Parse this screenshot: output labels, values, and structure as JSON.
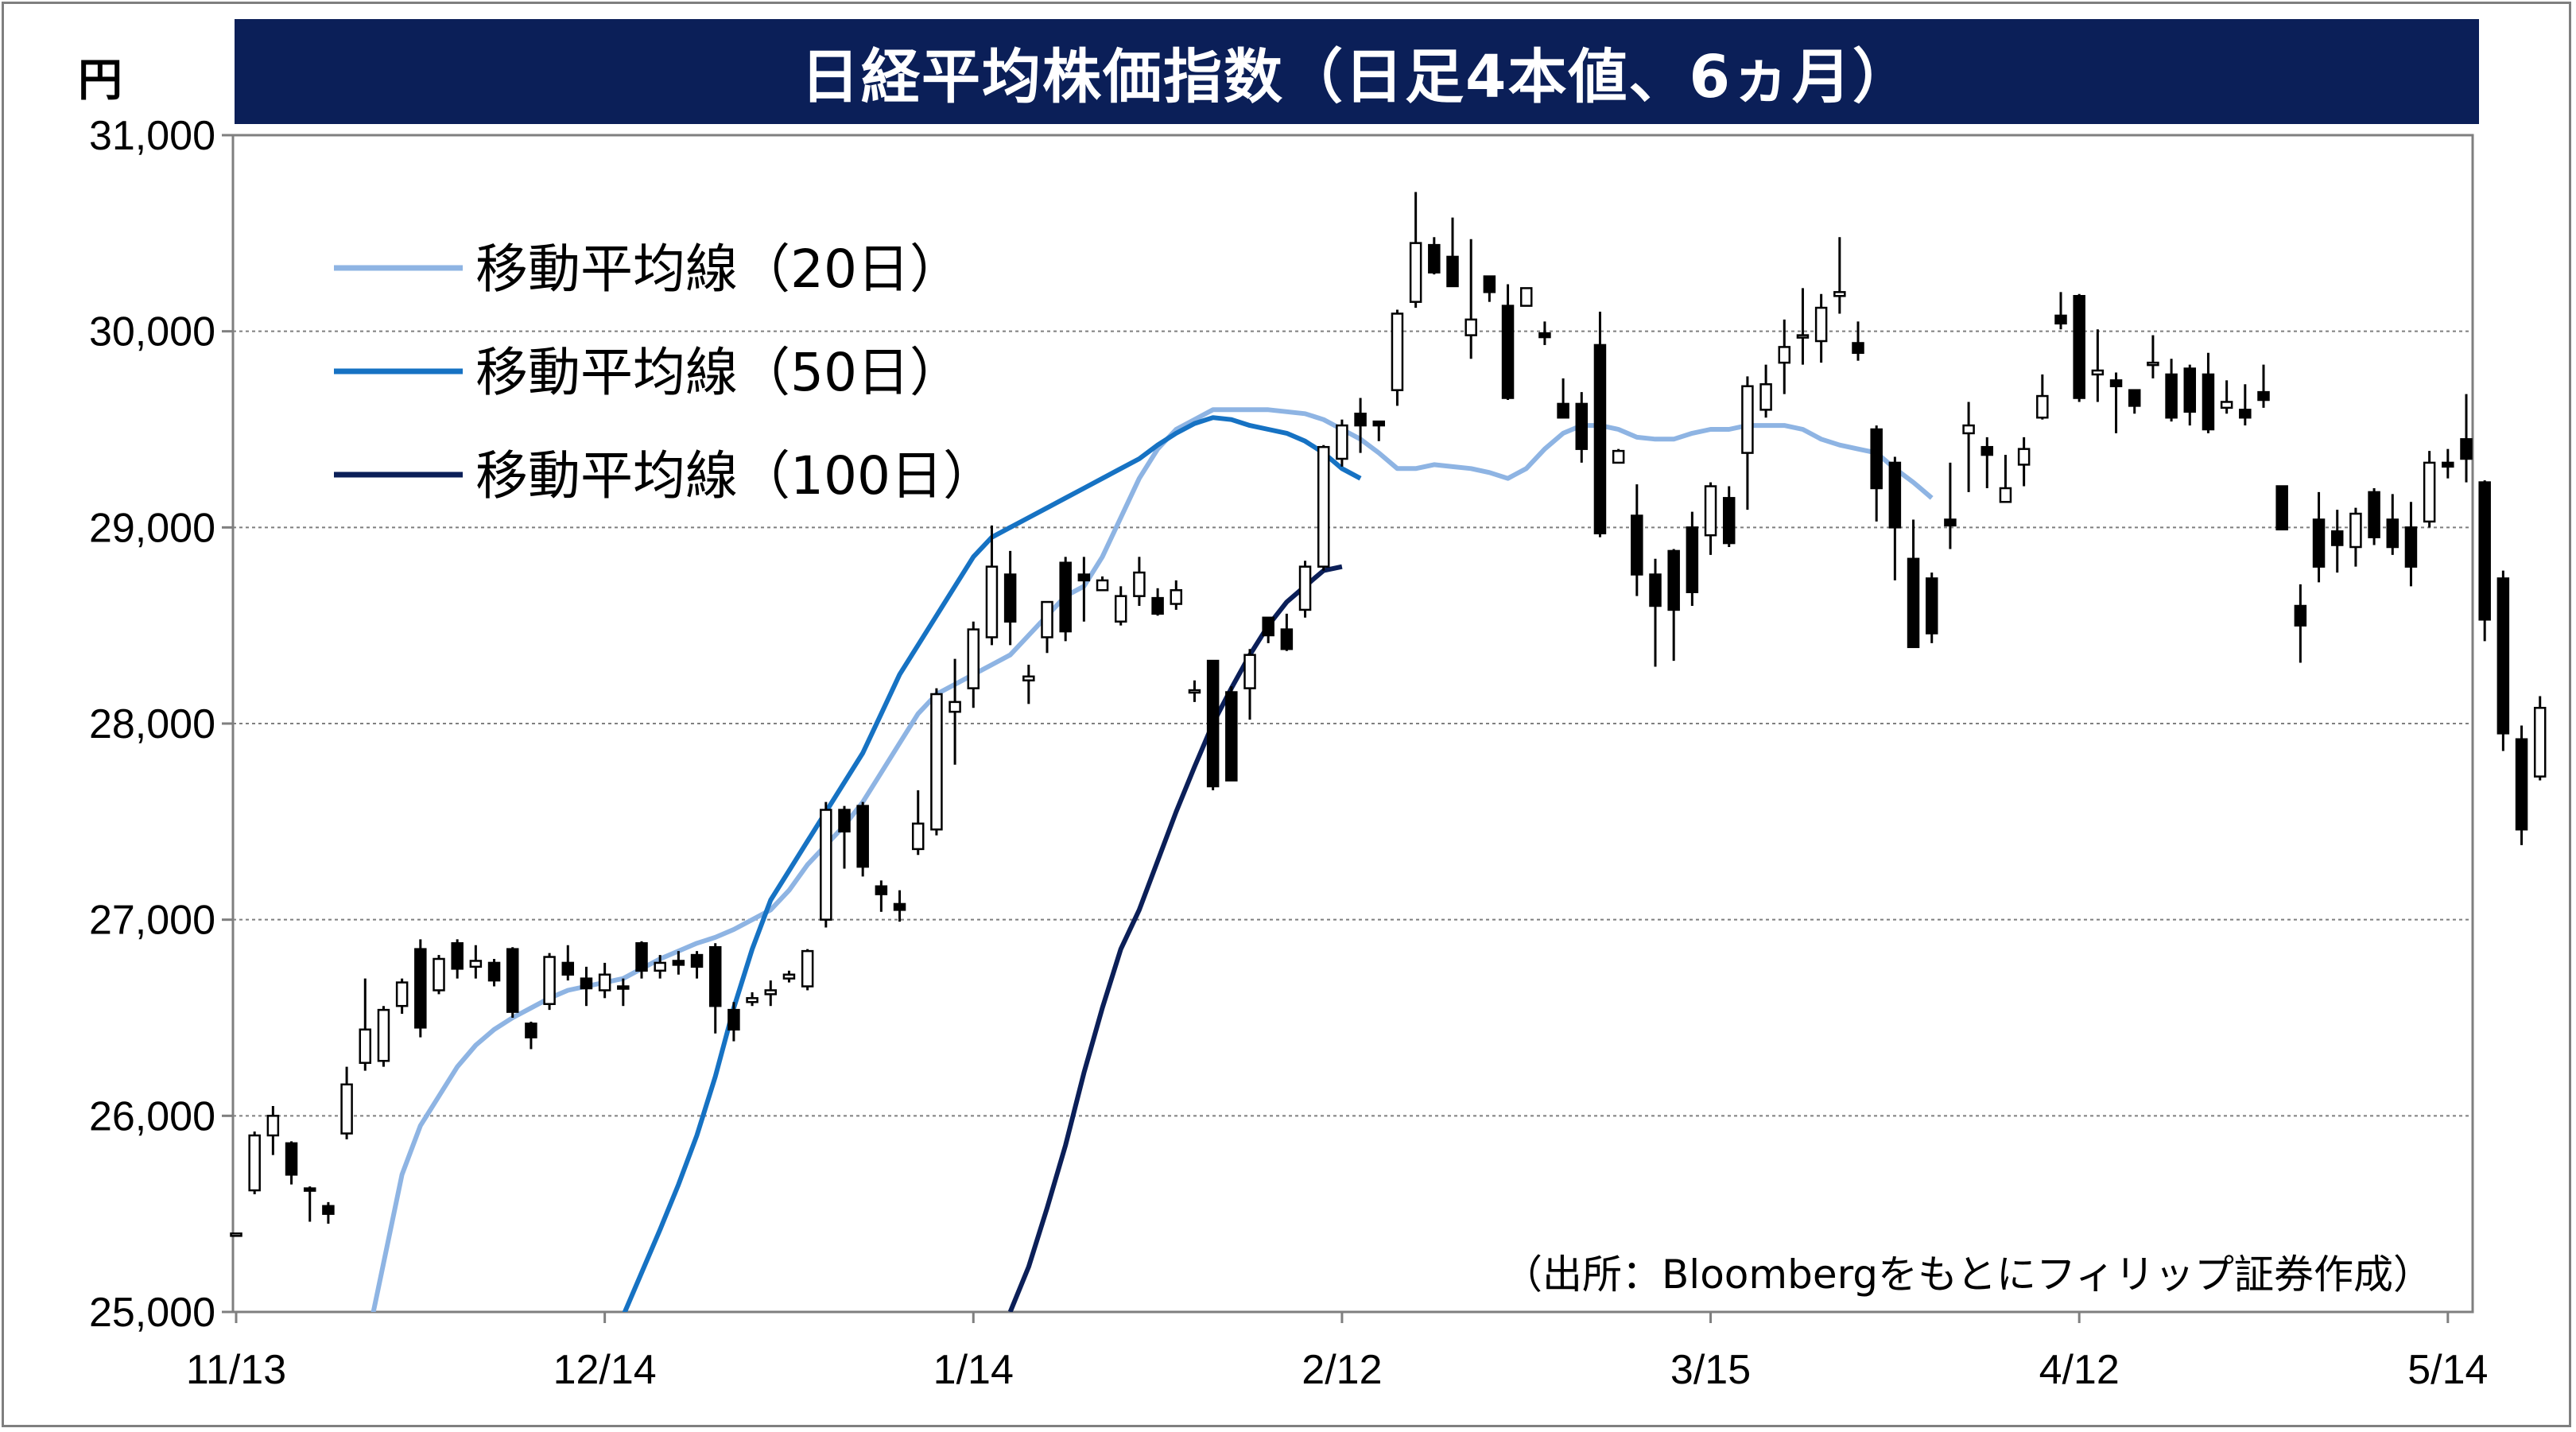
{
  "header": {
    "title": "日経平均株価指数（日足4本値、6ヵ月）",
    "unit": "円"
  },
  "source": "（出所：Bloombergをもとにフィリップ証券作成）",
  "chart_data": {
    "type": "candlestick",
    "title": "日経平均株価指数（日足4本値、6ヵ月）",
    "ylabel": "円",
    "ylim": [
      25000,
      31000
    ],
    "y_ticks": [
      25000,
      26000,
      27000,
      28000,
      29000,
      30000,
      31000
    ],
    "y_tick_labels": [
      "25,000",
      "26,000",
      "27,000",
      "28,000",
      "29,000",
      "30,000",
      "31,000"
    ],
    "x_ticks": [
      {
        "label": "11/13",
        "index": 0
      },
      {
        "label": "12/14",
        "index": 20
      },
      {
        "label": "1/14",
        "index": 40
      },
      {
        "label": "2/12",
        "index": 60
      },
      {
        "label": "3/15",
        "index": 80
      },
      {
        "label": "4/12",
        "index": 100
      },
      {
        "label": "5/14",
        "index": 120
      }
    ],
    "grid": true,
    "legend_position": "top-left",
    "x_max_index": 121,
    "candles": [
      [
        25400,
        25400,
        25400,
        25400
      ],
      [
        25620,
        25920,
        25600,
        25900
      ],
      [
        25900,
        26050,
        25800,
        26000
      ],
      [
        25860,
        25870,
        25650,
        25700
      ],
      [
        25630,
        25640,
        25460,
        25620
      ],
      [
        25540,
        25560,
        25450,
        25500
      ],
      [
        25910,
        26250,
        25880,
        26160
      ],
      [
        26270,
        26700,
        26230,
        26440
      ],
      [
        26280,
        26560,
        26250,
        26540
      ],
      [
        26560,
        26700,
        26520,
        26680
      ],
      [
        26850,
        26900,
        26400,
        26450
      ],
      [
        26640,
        26820,
        26620,
        26800
      ],
      [
        26880,
        26900,
        26700,
        26750
      ],
      [
        26760,
        26870,
        26700,
        26790
      ],
      [
        26780,
        26800,
        26660,
        26690
      ],
      [
        26850,
        26860,
        26500,
        26530
      ],
      [
        26470,
        26480,
        26340,
        26400
      ],
      [
        26570,
        26830,
        26540,
        26810
      ],
      [
        26780,
        26870,
        26690,
        26720
      ],
      [
        26700,
        26760,
        26560,
        26650
      ],
      [
        26640,
        26780,
        26600,
        26720
      ],
      [
        26660,
        26700,
        26560,
        26650
      ],
      [
        26880,
        26890,
        26700,
        26740
      ],
      [
        26740,
        26820,
        26700,
        26780
      ],
      [
        26790,
        26840,
        26720,
        26770
      ],
      [
        26820,
        26840,
        26700,
        26760
      ],
      [
        26860,
        26880,
        26420,
        26560
      ],
      [
        26540,
        26580,
        26380,
        26440
      ],
      [
        26580,
        26630,
        26560,
        26600
      ],
      [
        26620,
        26690,
        26560,
        26640
      ],
      [
        26700,
        26740,
        26680,
        26720
      ],
      [
        26660,
        26850,
        26640,
        26840
      ],
      [
        27000,
        27600,
        26960,
        27560
      ],
      [
        27560,
        27580,
        27260,
        27450
      ],
      [
        27580,
        27600,
        27220,
        27270
      ],
      [
        27170,
        27200,
        27040,
        27130
      ],
      [
        27080,
        27150,
        26990,
        27050
      ],
      [
        27360,
        27660,
        27330,
        27490
      ],
      [
        27460,
        28180,
        27430,
        28150
      ],
      [
        28060,
        28330,
        27790,
        28110
      ],
      [
        28180,
        28520,
        28080,
        28480
      ],
      [
        28440,
        29010,
        28400,
        28800
      ],
      [
        28760,
        28880,
        28400,
        28520
      ],
      [
        28220,
        28300,
        28100,
        28240
      ],
      [
        28440,
        28620,
        28360,
        28620
      ],
      [
        28820,
        28850,
        28420,
        28470
      ],
      [
        28760,
        28850,
        28520,
        28730
      ],
      [
        28680,
        28750,
        28710,
        28730
      ],
      [
        28520,
        28700,
        28500,
        28650
      ],
      [
        28650,
        28850,
        28600,
        28770
      ],
      [
        28640,
        28690,
        28550,
        28560
      ],
      [
        28610,
        28730,
        28580,
        28680
      ],
      [
        28170,
        28220,
        28110,
        28170
      ],
      [
        28320,
        28320,
        27660,
        27680
      ],
      [
        28160,
        28190,
        27710,
        27710
      ],
      [
        28180,
        28380,
        28020,
        28350
      ],
      [
        28540,
        28540,
        28410,
        28450
      ],
      [
        28480,
        28560,
        28370,
        28380
      ],
      [
        28580,
        28830,
        28540,
        28800
      ],
      [
        28800,
        29420,
        28780,
        29410
      ],
      [
        29350,
        29550,
        29310,
        29520
      ],
      [
        29580,
        29660,
        29380,
        29520
      ],
      [
        29540,
        29540,
        29440,
        29520
      ],
      [
        29700,
        30110,
        29620,
        30090
      ],
      [
        30150,
        30710,
        30120,
        30450
      ],
      [
        30440,
        30480,
        30290,
        30300
      ],
      [
        30380,
        30580,
        30230,
        30230
      ],
      [
        29980,
        30470,
        29860,
        30060
      ],
      [
        30280,
        30280,
        30150,
        30200
      ],
      [
        30130,
        30240,
        29650,
        29660
      ],
      [
        30130,
        30160,
        30170,
        30220
      ],
      [
        29990,
        30050,
        29930,
        29970
      ],
      [
        29630,
        29760,
        29560,
        29560
      ],
      [
        29630,
        29690,
        29330,
        29400
      ],
      [
        29930,
        30100,
        28950,
        28970
      ],
      [
        29330,
        29400,
        29330,
        29390
      ],
      [
        29060,
        29220,
        28650,
        28760
      ],
      [
        28760,
        28840,
        28290,
        28600
      ],
      [
        28880,
        28890,
        28320,
        28580
      ],
      [
        29000,
        29080,
        28600,
        28670
      ],
      [
        28960,
        29230,
        28860,
        29210
      ],
      [
        29150,
        29210,
        28900,
        28920
      ],
      [
        29380,
        29770,
        29090,
        29720
      ],
      [
        29600,
        29830,
        29560,
        29730
      ],
      [
        29840,
        30060,
        29680,
        29920
      ],
      [
        29980,
        30220,
        29830,
        29980
      ],
      [
        29950,
        30190,
        29840,
        30120
      ],
      [
        30180,
        30480,
        30090,
        30200
      ],
      [
        29940,
        30050,
        29850,
        29890
      ],
      [
        29500,
        29520,
        29030,
        29200
      ],
      [
        29330,
        29360,
        28730,
        29000
      ],
      [
        28840,
        29040,
        28410,
        28390
      ],
      [
        28740,
        28770,
        28410,
        28460
      ],
      [
        29040,
        29330,
        28890,
        29010
      ],
      [
        29480,
        29640,
        29180,
        29520
      ],
      [
        29410,
        29460,
        29200,
        29370
      ],
      [
        29130,
        29370,
        29130,
        29200
      ],
      [
        29320,
        29460,
        29210,
        29400
      ],
      [
        29560,
        29780,
        29550,
        29670
      ],
      [
        30080,
        30200,
        30010,
        30040
      ],
      [
        30180,
        30190,
        29640,
        29660
      ],
      [
        29780,
        30010,
        29640,
        29800
      ],
      [
        29750,
        29790,
        29480,
        29720
      ],
      [
        29700,
        29700,
        29580,
        29620
      ],
      [
        29840,
        29980,
        29760,
        29840
      ],
      [
        29780,
        29860,
        29540,
        29560
      ],
      [
        29810,
        29830,
        29520,
        29590
      ],
      [
        29780,
        29890,
        29480,
        29500
      ],
      [
        29610,
        29750,
        29580,
        29640
      ],
      [
        29600,
        29730,
        29520,
        29560
      ],
      [
        29690,
        29830,
        29610,
        29650
      ],
      [
        29210,
        29210,
        29020,
        28990
      ],
      [
        28600,
        28710,
        28310,
        28500
      ],
      [
        29040,
        29180,
        28720,
        28800
      ],
      [
        28980,
        29090,
        28770,
        28910
      ],
      [
        28900,
        29100,
        28800,
        29070
      ],
      [
        29180,
        29200,
        28910,
        28950
      ],
      [
        29040,
        29170,
        28860,
        28900
      ],
      [
        29000,
        29130,
        28700,
        28800
      ],
      [
        29030,
        29390,
        29000,
        29330
      ],
      [
        29330,
        29400,
        29250,
        29310
      ],
      [
        29450,
        29680,
        29230,
        29350
      ],
      [
        29230,
        29240,
        28420,
        28530
      ],
      [
        28740,
        28780,
        27860,
        27950
      ],
      [
        27920,
        27990,
        27380,
        27460
      ],
      [
        27730,
        28140,
        27710,
        28080
      ]
    ],
    "series": [
      {
        "name": "移動平均線（20日）",
        "color": "#8eb4e3",
        "start_index": 7,
        "values": [
          24800,
          25250,
          25700,
          25950,
          26100,
          26250,
          26360,
          26440,
          26500,
          26550,
          26600,
          26640,
          26660,
          26680,
          26700,
          26750,
          26800,
          26840,
          26880,
          26910,
          26950,
          27000,
          27050,
          27150,
          27280,
          27380,
          27480,
          27600,
          27750,
          27900,
          28050,
          28150,
          28200,
          28250,
          28300,
          28350,
          28450,
          28550,
          28650,
          28700,
          28850,
          29050,
          29250,
          29400,
          29500,
          29550,
          29600,
          29600,
          29600,
          29600,
          29590,
          29580,
          29550,
          29500,
          29450,
          29380,
          29300,
          29300,
          29320,
          29310,
          29300,
          29280,
          29250,
          29300,
          29400,
          29480,
          29520,
          29520,
          29500,
          29460,
          29450,
          29450,
          29480,
          29500,
          29500,
          29520,
          29520,
          29520,
          29500,
          29450,
          29420,
          29400,
          29380,
          29300,
          29230,
          29150
        ]
      },
      {
        "name": "移動平均線（50日）",
        "color": "#1672c3",
        "start_index": 21,
        "values": [
          24980,
          25200,
          25420,
          25650,
          25900,
          26200,
          26550,
          26850,
          27100,
          27250,
          27400,
          27550,
          27700,
          27850,
          28050,
          28250,
          28400,
          28550,
          28700,
          28850,
          28950,
          29000,
          29050,
          29100,
          29150,
          29200,
          29250,
          29300,
          29350,
          29420,
          29480,
          29530,
          29560,
          29550,
          29520,
          29500,
          29480,
          29440,
          29380,
          29300,
          29250
        ]
      },
      {
        "name": "移動平均線（100日）",
        "color": "#0b1f58",
        "start_index": 42,
        "values": [
          25000,
          25230,
          25530,
          25850,
          26220,
          26550,
          26850,
          27050,
          27300,
          27550,
          27780,
          28000,
          28180,
          28350,
          28500,
          28620,
          28700,
          28780,
          28800
        ]
      }
    ]
  }
}
